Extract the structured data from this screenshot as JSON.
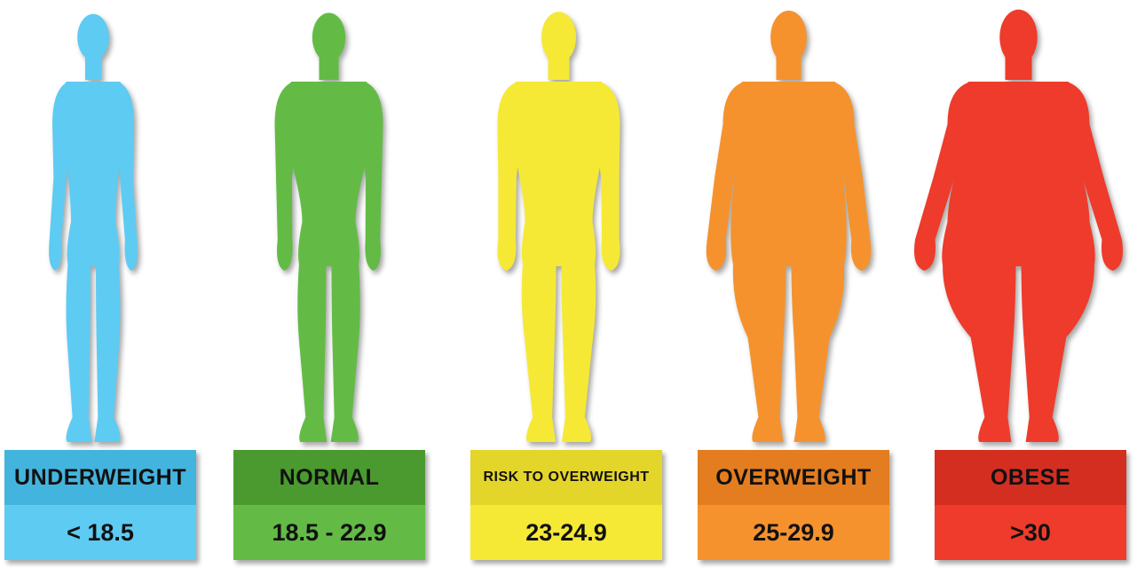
{
  "categories": [
    {
      "label": "UNDERWEIGHT",
      "range": "< 18.5",
      "body_color": "#5ecbf3",
      "head_color": "#43b4de",
      "value_color": "#5ecbf3",
      "body": "thin"
    },
    {
      "label": "NORMAL",
      "range": "18.5 - 22.9",
      "body_color": "#63bb46",
      "head_color": "#4a9a2f",
      "value_color": "#63bb46",
      "body": "normal"
    },
    {
      "label": "RISK TO OVERWEIGHT",
      "range": "23-24.9",
      "body_color": "#f6e936",
      "head_color": "#e4d52b",
      "value_color": "#f6e936",
      "body": "broad"
    },
    {
      "label": "OVERWEIGHT",
      "range": "25-29.9",
      "body_color": "#f5922d",
      "head_color": "#e47d1f",
      "value_color": "#f5922d",
      "body": "overweight"
    },
    {
      "label": "OBESE",
      "range": ">30",
      "body_color": "#ee3b2b",
      "head_color": "#d32e20",
      "value_color": "#ee3b2b",
      "body": "obese"
    }
  ]
}
